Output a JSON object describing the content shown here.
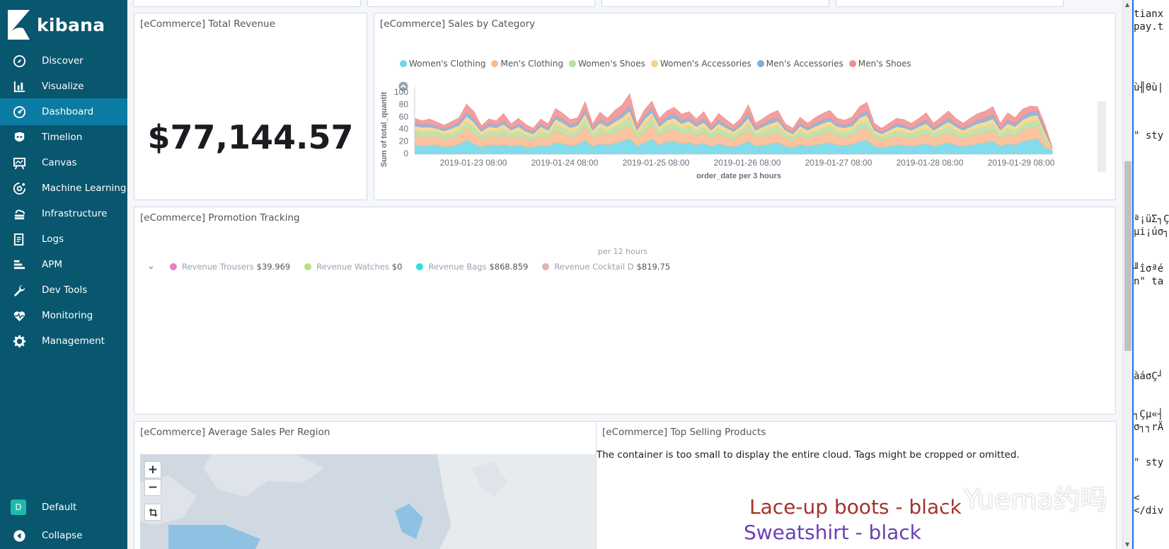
{
  "app": {
    "name": "kibana"
  },
  "sidebar": {
    "items": [
      {
        "label": "Discover",
        "icon": "compass-icon"
      },
      {
        "label": "Visualize",
        "icon": "bar-chart-icon"
      },
      {
        "label": "Dashboard",
        "icon": "dashboard-icon",
        "active": true
      },
      {
        "label": "Timelion",
        "icon": "timelion-icon"
      },
      {
        "label": "Canvas",
        "icon": "canvas-icon"
      },
      {
        "label": "Machine Learning",
        "icon": "machine-learning-icon"
      },
      {
        "label": "Infrastructure",
        "icon": "infrastructure-icon"
      },
      {
        "label": "Logs",
        "icon": "logs-icon"
      },
      {
        "label": "APM",
        "icon": "apm-icon"
      },
      {
        "label": "Dev Tools",
        "icon": "wrench-icon"
      },
      {
        "label": "Monitoring",
        "icon": "heartbeat-icon"
      },
      {
        "label": "Management",
        "icon": "gear-icon"
      }
    ],
    "space": {
      "badge": "D",
      "label": "Default"
    },
    "collapse_label": "Collapse"
  },
  "panels": {
    "total_revenue": {
      "title": "[eCommerce] Total Revenue",
      "value": "$77,144.57"
    },
    "sales_by_category": {
      "title": "[eCommerce] Sales by Category"
    },
    "promotion_tracking": {
      "title": "[eCommerce] Promotion Tracking",
      "sublabel": "per 12 hours",
      "legend": [
        {
          "name": "Revenue Trousers",
          "value": "$39.969",
          "color": "#e57ec8"
        },
        {
          "name": "Revenue Watches",
          "value": "$0",
          "color": "#b8e187"
        },
        {
          "name": "Revenue Bags",
          "value": "$868.859",
          "color": "#2ce0e0"
        },
        {
          "name": "Revenue Cocktail D",
          "value": "$819.75",
          "color": "#e8b3ad"
        }
      ]
    },
    "average_sales_region": {
      "title": "[eCommerce] Average Sales Per Region",
      "zoom_in": "+",
      "zoom_out": "−"
    },
    "top_selling": {
      "title": "[eCommerce] Top Selling Products",
      "warning": "The container is too small to display the entire cloud. Tags might be cropped or omitted.",
      "tags": [
        {
          "text": "Lace-up boots - black",
          "color": "#a4322c"
        },
        {
          "text": "Sweatshirt - black",
          "color": "#6b3fb6"
        }
      ]
    }
  },
  "chart_data": {
    "type": "area",
    "stacked": true,
    "xlabel": "order_date per 3 hours",
    "ylabel": "Sum of total_quantit",
    "ylim": [
      0,
      100
    ],
    "yticks": [
      0,
      20,
      40,
      60,
      80,
      100
    ],
    "xticks": [
      "2019-01-23 08:00",
      "2019-01-24 08:00",
      "2019-01-25 08:00",
      "2019-01-26 08:00",
      "2019-01-27 08:00",
      "2019-01-28 08:00",
      "2019-01-29 08:00"
    ],
    "legend_position": "top",
    "series": [
      {
        "name": "Women's Clothing",
        "color": "#6dd6e9",
        "values": [
          14,
          12,
          13,
          14,
          11,
          12,
          15,
          22,
          16,
          11,
          14,
          13,
          15,
          12,
          14,
          11,
          10,
          14,
          12,
          18,
          16,
          13,
          15,
          22,
          12,
          16,
          14,
          17,
          20,
          24,
          12,
          18,
          24,
          14,
          19,
          20,
          16,
          18,
          14,
          17,
          12,
          16,
          13,
          11,
          15,
          20,
          12,
          14,
          16,
          18,
          12,
          10,
          15,
          12,
          14,
          16,
          18,
          14,
          13,
          15,
          20,
          22,
          12,
          10,
          12,
          14,
          13,
          12,
          14,
          16,
          12,
          15,
          18,
          14,
          12,
          14,
          16,
          18,
          20,
          12,
          16,
          14,
          20,
          22,
          24,
          10,
          5
        ]
      },
      {
        "name": "Men's Clothing",
        "color": "#f8ba8e",
        "values": [
          16,
          16,
          15,
          14,
          13,
          14,
          16,
          20,
          18,
          12,
          15,
          14,
          16,
          13,
          15,
          12,
          11,
          15,
          13,
          19,
          17,
          14,
          16,
          22,
          13,
          17,
          15,
          18,
          20,
          23,
          13,
          19,
          22,
          15,
          18,
          19,
          16,
          18,
          15,
          17,
          13,
          16,
          14,
          12,
          15,
          19,
          13,
          15,
          16,
          18,
          13,
          11,
          15,
          13,
          15,
          16,
          18,
          15,
          14,
          15,
          19,
          20,
          13,
          11,
          13,
          15,
          14,
          13,
          15,
          16,
          13,
          15,
          17,
          15,
          13,
          15,
          16,
          17,
          18,
          13,
          16,
          15,
          18,
          20,
          20,
          12,
          3
        ]
      },
      {
        "name": "Women's Shoes",
        "color": "#b6dea0",
        "values": [
          8,
          8,
          8,
          7,
          7,
          8,
          8,
          10,
          9,
          7,
          8,
          8,
          9,
          7,
          8,
          7,
          6,
          8,
          7,
          10,
          9,
          8,
          8,
          11,
          7,
          9,
          8,
          9,
          10,
          12,
          7,
          10,
          11,
          8,
          9,
          10,
          9,
          9,
          8,
          9,
          7,
          9,
          8,
          7,
          8,
          10,
          7,
          8,
          9,
          9,
          7,
          6,
          8,
          7,
          8,
          9,
          9,
          8,
          8,
          8,
          10,
          11,
          7,
          6,
          7,
          8,
          8,
          7,
          8,
          9,
          7,
          8,
          9,
          8,
          7,
          8,
          9,
          9,
          10,
          7,
          9,
          8,
          9,
          10,
          10,
          7,
          1
        ]
      },
      {
        "name": "Women's Accessories",
        "color": "#f4d387",
        "values": [
          7,
          7,
          7,
          6,
          6,
          7,
          7,
          9,
          8,
          6,
          7,
          7,
          8,
          6,
          7,
          6,
          5,
          7,
          6,
          9,
          8,
          7,
          7,
          10,
          6,
          8,
          7,
          8,
          9,
          11,
          6,
          9,
          10,
          7,
          8,
          9,
          8,
          8,
          7,
          8,
          6,
          8,
          7,
          6,
          7,
          9,
          6,
          7,
          8,
          8,
          6,
          5,
          7,
          6,
          7,
          8,
          8,
          7,
          7,
          7,
          9,
          10,
          6,
          5,
          6,
          7,
          7,
          6,
          7,
          8,
          6,
          7,
          8,
          7,
          6,
          7,
          8,
          8,
          9,
          6,
          8,
          7,
          8,
          9,
          9,
          6,
          1
        ]
      },
      {
        "name": "Men's Accessories",
        "color": "#7aaee0",
        "values": [
          4,
          4,
          4,
          3,
          3,
          4,
          4,
          6,
          5,
          3,
          4,
          4,
          4,
          3,
          4,
          3,
          3,
          4,
          3,
          5,
          5,
          4,
          4,
          6,
          3,
          5,
          4,
          5,
          5,
          7,
          3,
          5,
          6,
          4,
          5,
          6,
          5,
          5,
          4,
          5,
          3,
          5,
          4,
          3,
          4,
          7,
          3,
          4,
          5,
          5,
          3,
          3,
          4,
          3,
          4,
          5,
          5,
          4,
          4,
          4,
          5,
          6,
          3,
          3,
          3,
          4,
          4,
          3,
          4,
          5,
          3,
          4,
          5,
          4,
          3,
          4,
          5,
          5,
          6,
          3,
          5,
          4,
          5,
          6,
          6,
          4,
          0
        ]
      },
      {
        "name": "Men's Shoes",
        "color": "#f08e8e",
        "values": [
          8,
          6,
          9,
          7,
          6,
          7,
          8,
          13,
          12,
          6,
          8,
          7,
          13,
          7,
          9,
          8,
          6,
          8,
          7,
          12,
          10,
          9,
          8,
          13,
          7,
          12,
          9,
          13,
          15,
          20,
          7,
          10,
          12,
          9,
          10,
          11,
          10,
          10,
          8,
          12,
          7,
          11,
          9,
          7,
          8,
          14,
          8,
          9,
          11,
          12,
          7,
          6,
          10,
          8,
          10,
          11,
          12,
          9,
          8,
          10,
          13,
          14,
          8,
          6,
          8,
          9,
          9,
          8,
          9,
          12,
          8,
          10,
          12,
          9,
          8,
          10,
          11,
          12,
          13,
          8,
          12,
          10,
          12,
          10,
          7,
          8,
          0
        ]
      }
    ]
  },
  "code_pane": {
    "lines": [
      "tianx",
      "pay.t",
      "ù╢θù|",
      "\" sty",
      "ª¡üΣ┐Ç",
      "µi¡úσ┐",
      "╜îσªé",
      "n\" ta",
      "àáσÇ┘",
      "┐Çµ«┤",
      "σ┐┐rÄ",
      "\" sty",
      "<",
      "</div"
    ]
  },
  "watermark": {
    "text": "Yuema约吗"
  }
}
